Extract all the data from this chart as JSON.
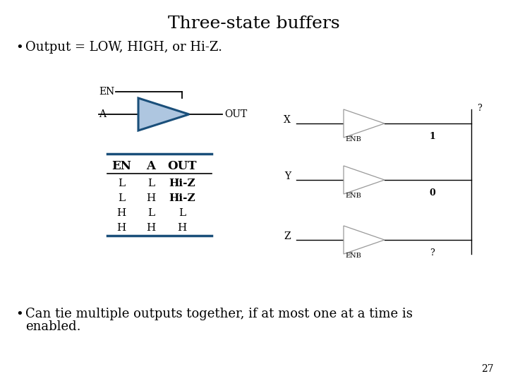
{
  "title": "Three-state buffers",
  "bullet1": "Output = LOW, HIGH, or Hi-Z.",
  "bullet2_line1": "Can tie multiple outputs together, if at most one at a time is",
  "bullet2_line2": "enabled.",
  "page_num": "27",
  "bg_color": "#ffffff",
  "title_fontsize": 18,
  "body_fontsize": 13,
  "blue_color": "#1a4f7a",
  "blue_fill": "#6699cc",
  "blue_light": "#aec6e0",
  "table_rows": [
    [
      "L",
      "L",
      "Hi-Z"
    ],
    [
      "L",
      "H",
      "Hi-Z"
    ],
    [
      "H",
      "L",
      "L"
    ],
    [
      "H",
      "H",
      "H"
    ]
  ],
  "right_input_labels": [
    "X",
    "Y",
    "Z"
  ],
  "right_enb_labels": [
    "ENB",
    "ENB",
    "ENB"
  ],
  "right_outputs": [
    "1",
    "0",
    "?"
  ],
  "bus_top_label": "?"
}
